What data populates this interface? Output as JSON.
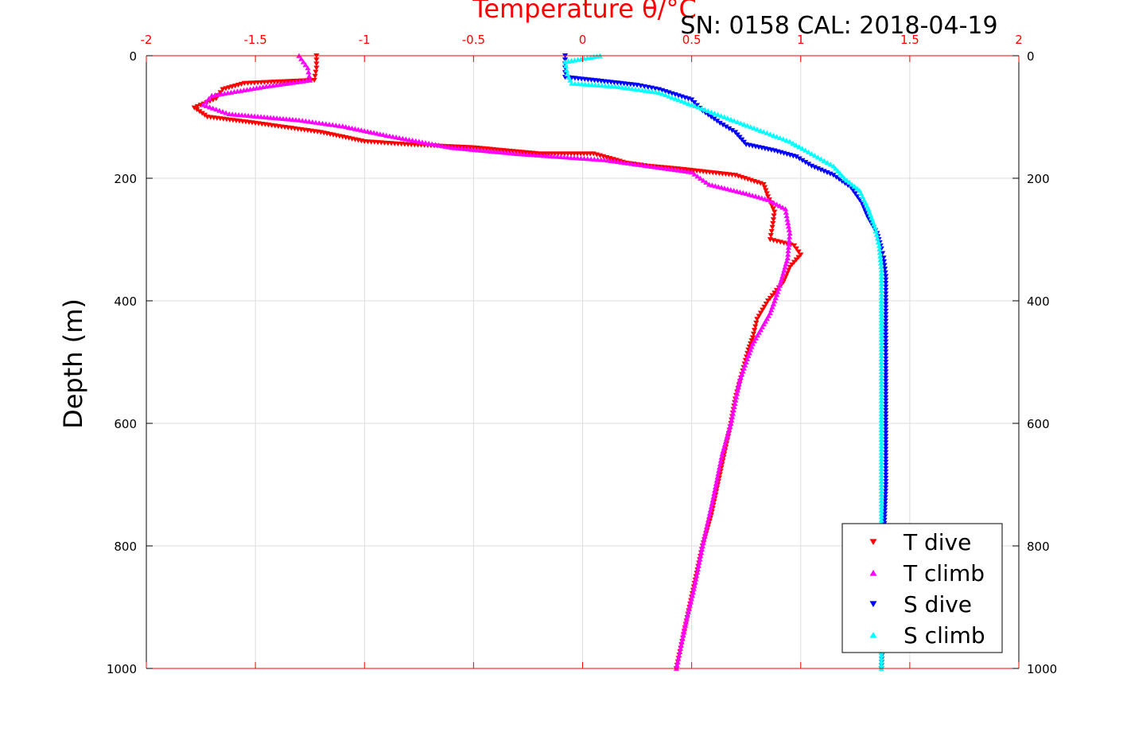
{
  "header": {
    "temperature_title": "Temperature θ/°C",
    "serial_label": "SN: 0158  CAL: 2018-04-19"
  },
  "chart_data": {
    "type": "scatter",
    "x_axis_top": {
      "label": "Temperature θ/°C",
      "range": [
        -2,
        2
      ],
      "ticks": [
        -2,
        -1.5,
        -1,
        -0.5,
        0,
        0.5,
        1,
        1.5,
        2
      ],
      "tick_labels": [
        "-2",
        "-1.5",
        "-1",
        "-0.5",
        "0",
        "0.5",
        "1",
        "1.5",
        "2"
      ],
      "color": "#ff0000"
    },
    "y_axis": {
      "label": "Depth (m)",
      "range": [
        0,
        1000
      ],
      "reversed": true,
      "ticks": [
        0,
        200,
        400,
        600,
        800,
        1000
      ],
      "tick_labels": [
        "0",
        "200",
        "400",
        "600",
        "800",
        "1000"
      ]
    },
    "grid": true,
    "legend_position": "bottom-right",
    "series": [
      {
        "name": "T dive",
        "color": "#ff0000",
        "marker": "triangle-down",
        "points": [
          [
            -1.22,
            0
          ],
          [
            -1.22,
            20
          ],
          [
            -1.23,
            40
          ],
          [
            -1.55,
            45
          ],
          [
            -1.65,
            55
          ],
          [
            -1.68,
            70
          ],
          [
            -1.78,
            85
          ],
          [
            -1.72,
            100
          ],
          [
            -1.5,
            110
          ],
          [
            -1.2,
            125
          ],
          [
            -1.0,
            140
          ],
          [
            -0.8,
            145
          ],
          [
            -0.5,
            150
          ],
          [
            -0.2,
            160
          ],
          [
            0.05,
            160
          ],
          [
            0.2,
            175
          ],
          [
            0.3,
            180
          ],
          [
            0.45,
            185
          ],
          [
            0.7,
            195
          ],
          [
            0.83,
            210
          ],
          [
            0.85,
            230
          ],
          [
            0.88,
            255
          ],
          [
            0.87,
            280
          ],
          [
            0.86,
            300
          ],
          [
            0.97,
            310
          ],
          [
            1.0,
            325
          ],
          [
            0.95,
            345
          ],
          [
            0.92,
            370
          ],
          [
            0.85,
            400
          ],
          [
            0.8,
            430
          ],
          [
            0.78,
            460
          ],
          [
            0.76,
            480
          ],
          [
            0.73,
            520
          ],
          [
            0.7,
            560
          ],
          [
            0.68,
            600
          ],
          [
            0.65,
            650
          ],
          [
            0.62,
            700
          ],
          [
            0.59,
            750
          ],
          [
            0.55,
            800
          ],
          [
            0.52,
            850
          ],
          [
            0.49,
            900
          ],
          [
            0.46,
            950
          ],
          [
            0.43,
            1000
          ]
        ]
      },
      {
        "name": "T climb",
        "color": "#ff00ff",
        "marker": "triangle-up",
        "points": [
          [
            -1.3,
            0
          ],
          [
            -1.26,
            20
          ],
          [
            -1.25,
            40
          ],
          [
            -1.45,
            50
          ],
          [
            -1.7,
            65
          ],
          [
            -1.74,
            80
          ],
          [
            -1.62,
            95
          ],
          [
            -1.3,
            105
          ],
          [
            -1.1,
            115
          ],
          [
            -0.9,
            130
          ],
          [
            -0.6,
            150
          ],
          [
            -0.3,
            160
          ],
          [
            -0.1,
            165
          ],
          [
            0.1,
            170
          ],
          [
            0.3,
            180
          ],
          [
            0.5,
            190
          ],
          [
            0.58,
            210
          ],
          [
            0.75,
            225
          ],
          [
            0.85,
            235
          ],
          [
            0.93,
            250
          ],
          [
            0.95,
            290
          ],
          [
            0.94,
            330
          ],
          [
            0.9,
            380
          ],
          [
            0.86,
            420
          ],
          [
            0.78,
            470
          ],
          [
            0.72,
            530
          ],
          [
            0.68,
            600
          ],
          [
            0.64,
            650
          ],
          [
            0.6,
            720
          ],
          [
            0.55,
            800
          ],
          [
            0.51,
            870
          ],
          [
            0.47,
            930
          ],
          [
            0.43,
            1000
          ]
        ]
      },
      {
        "name": "S dive",
        "color": "#0000ff",
        "marker": "triangle-down",
        "points": [
          [
            -0.08,
            0
          ],
          [
            -0.08,
            20
          ],
          [
            -0.08,
            35
          ],
          [
            0.1,
            42
          ],
          [
            0.25,
            48
          ],
          [
            0.35,
            55
          ],
          [
            0.5,
            72
          ],
          [
            0.55,
            90
          ],
          [
            0.63,
            110
          ],
          [
            0.7,
            125
          ],
          [
            0.75,
            145
          ],
          [
            0.88,
            155
          ],
          [
            0.98,
            165
          ],
          [
            1.05,
            180
          ],
          [
            1.15,
            195
          ],
          [
            1.23,
            215
          ],
          [
            1.28,
            240
          ],
          [
            1.31,
            265
          ],
          [
            1.35,
            290
          ],
          [
            1.37,
            315
          ],
          [
            1.38,
            330
          ],
          [
            1.39,
            360
          ],
          [
            1.39,
            400
          ],
          [
            1.39,
            450
          ],
          [
            1.39,
            500
          ],
          [
            1.39,
            600
          ],
          [
            1.39,
            700
          ],
          [
            1.38,
            800
          ],
          [
            1.38,
            900
          ],
          [
            1.37,
            1000
          ]
        ]
      },
      {
        "name": "S climb",
        "color": "#00ffff",
        "marker": "triangle-up",
        "points": [
          [
            0.08,
            0
          ],
          [
            -0.08,
            10
          ],
          [
            -0.07,
            30
          ],
          [
            -0.05,
            45
          ],
          [
            0.15,
            50
          ],
          [
            0.35,
            60
          ],
          [
            0.5,
            80
          ],
          [
            0.65,
            100
          ],
          [
            0.8,
            120
          ],
          [
            0.95,
            140
          ],
          [
            1.05,
            160
          ],
          [
            1.15,
            180
          ],
          [
            1.2,
            200
          ],
          [
            1.27,
            220
          ],
          [
            1.31,
            250
          ],
          [
            1.34,
            280
          ],
          [
            1.36,
            310
          ],
          [
            1.37,
            350
          ],
          [
            1.37,
            400
          ],
          [
            1.37,
            500
          ],
          [
            1.37,
            600
          ],
          [
            1.37,
            700
          ],
          [
            1.37,
            800
          ],
          [
            1.37,
            900
          ],
          [
            1.37,
            1000
          ]
        ]
      }
    ]
  }
}
